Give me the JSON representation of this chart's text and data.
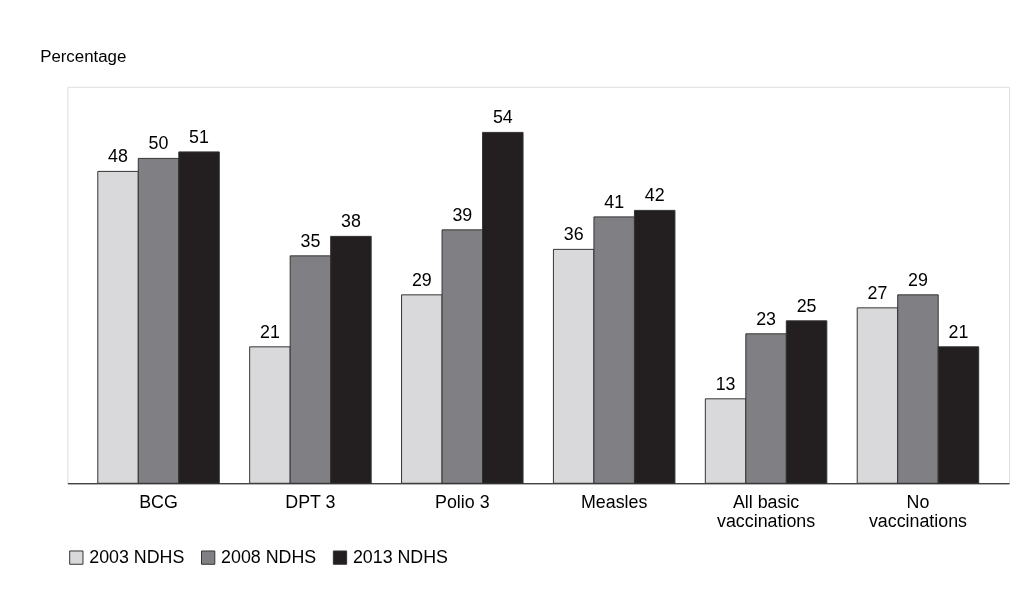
{
  "chart_data": {
    "type": "bar",
    "ylabel": "Percentage",
    "categories": [
      "BCG",
      "DPT 3",
      "Polio 3",
      "Measles",
      "All basic vaccinations",
      "No vaccinations"
    ],
    "series": [
      {
        "name": "2003 NDHS",
        "color": "#d9d9db",
        "values": [
          48,
          21,
          29,
          36,
          13,
          27
        ]
      },
      {
        "name": "2008 NDHS",
        "color": "#808084",
        "values": [
          50,
          35,
          39,
          41,
          23,
          29
        ]
      },
      {
        "name": "2013 NDHS",
        "color": "#231f20",
        "values": [
          51,
          38,
          54,
          42,
          25,
          21
        ]
      }
    ],
    "data_labels": true,
    "legend": "bottom",
    "grid": false
  }
}
